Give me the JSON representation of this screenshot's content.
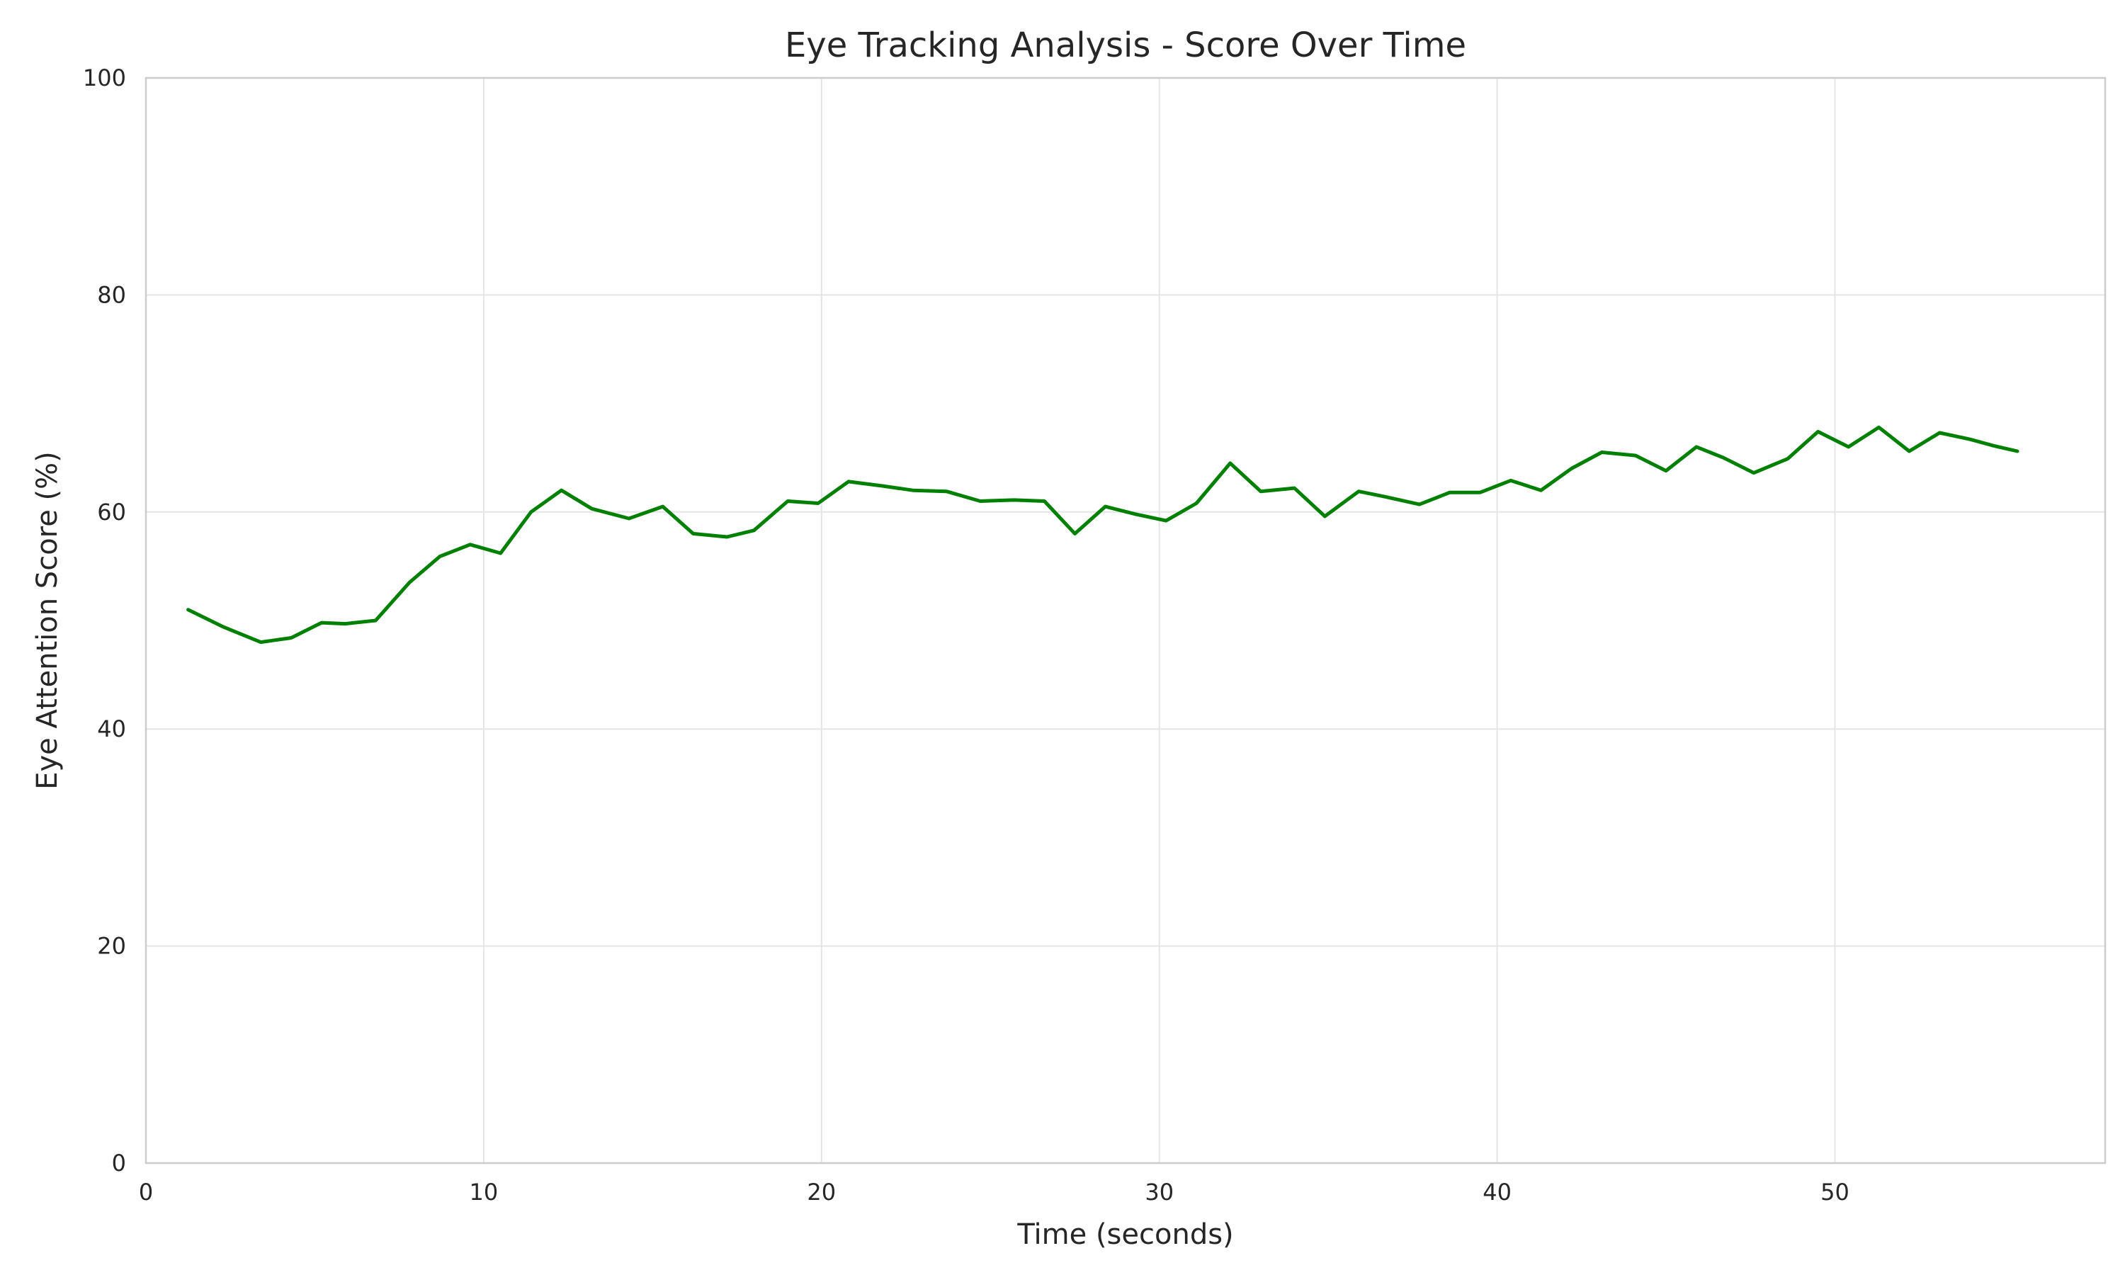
{
  "chart_data": {
    "type": "line",
    "title": "Eye Tracking Analysis - Score Over Time",
    "xlabel": "Time (seconds)",
    "ylabel": "Eye Attention Score (%)",
    "xlim": [
      0,
      58
    ],
    "ylim": [
      0,
      100
    ],
    "xticks": [
      0,
      10,
      20,
      30,
      40,
      50
    ],
    "yticks": [
      0,
      20,
      40,
      60,
      80,
      100
    ],
    "grid": true,
    "line_color": "#008000",
    "series": [
      {
        "x": [
          1.25,
          2.3,
          3.4,
          4.3,
          5.2,
          5.9,
          6.8,
          7.8,
          8.7,
          9.6,
          10.5,
          11.4,
          12.3,
          13.2,
          14.3,
          15.3,
          16.2,
          17.2,
          18.0,
          19.0,
          19.9,
          20.8,
          21.8,
          22.7,
          23.7,
          24.7,
          25.7,
          26.6,
          27.5,
          28.4,
          29.3,
          30.2,
          31.1,
          32.1,
          33.0,
          34.0,
          34.9,
          35.9,
          36.7,
          37.7,
          38.6,
          39.5,
          40.4,
          41.3,
          42.2,
          43.1,
          44.1,
          45.0,
          45.9,
          46.7,
          47.6,
          48.6,
          49.5,
          50.4,
          51.3,
          52.2,
          53.1,
          54.0,
          54.7,
          55.4
        ],
        "values": [
          51.0,
          49.4,
          48.0,
          48.4,
          49.8,
          49.7,
          50.0,
          53.5,
          55.9,
          57.0,
          56.2,
          60.0,
          62.0,
          60.3,
          59.4,
          60.5,
          58.0,
          57.7,
          58.3,
          61.0,
          60.8,
          62.8,
          62.4,
          62.0,
          61.9,
          61.0,
          61.1,
          61.0,
          58.0,
          60.5,
          59.8,
          59.2,
          60.8,
          64.5,
          61.9,
          62.2,
          59.6,
          61.9,
          61.4,
          60.7,
          61.8,
          61.8,
          62.9,
          62.0,
          64.0,
          65.5,
          65.2,
          63.8,
          66.0,
          65.0,
          63.6,
          64.9,
          67.4,
          66.0,
          67.8,
          65.6,
          67.3,
          66.7,
          66.1,
          65.6
        ]
      }
    ]
  }
}
